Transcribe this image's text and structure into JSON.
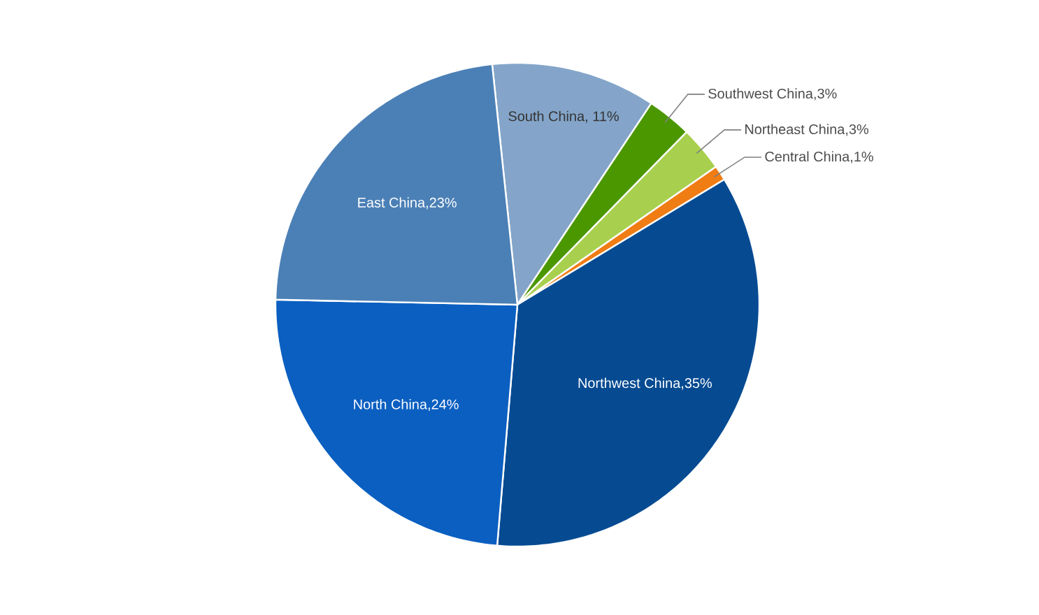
{
  "chart_data": {
    "type": "pie",
    "categories": [
      "South China",
      "Southwest China",
      "Northeast China",
      "Central China",
      "Northwest China",
      "North China",
      "East China"
    ],
    "values": [
      11,
      3,
      3,
      1,
      35,
      24,
      23
    ],
    "colors": [
      "#84a5c9",
      "#4b9700",
      "#a8d04e",
      "#f07c14",
      "#064b92",
      "#0b5fc1",
      "#4b80b6"
    ],
    "value_labels": [
      ", 11%",
      ",3%",
      ",3%",
      ",1%",
      ",35%",
      ",24%",
      ",23%"
    ]
  }
}
